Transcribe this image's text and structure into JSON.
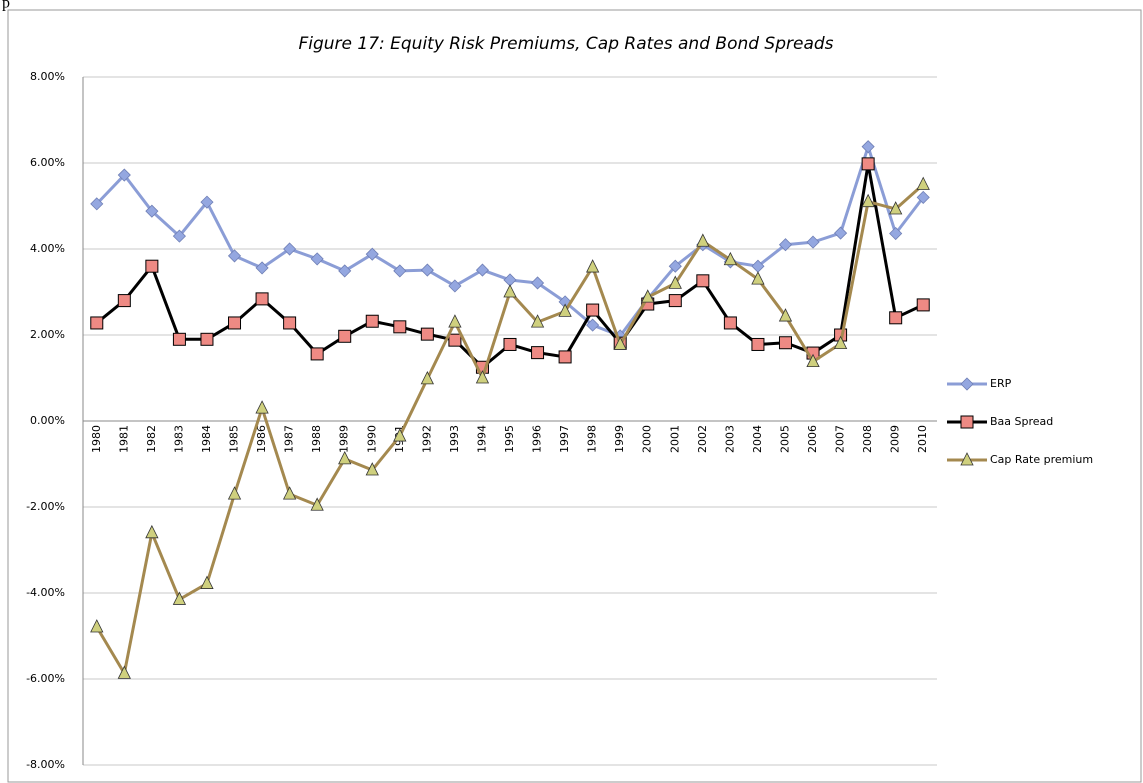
{
  "text_fragment": "p",
  "chart_data": {
    "type": "line",
    "title": "Figure 17: Equity Risk Premiums, Cap Rates and Bond Spreads",
    "categories": [
      "1980",
      "1981",
      "1982",
      "1983",
      "1984",
      "1985",
      "1986",
      "1987",
      "1988",
      "1989",
      "1990",
      "1991",
      "1992",
      "1993",
      "1994",
      "1995",
      "1996",
      "1997",
      "1998",
      "1999",
      "2000",
      "2001",
      "2002",
      "2003",
      "2004",
      "2005",
      "2006",
      "2007",
      "2008",
      "2009",
      "2010"
    ],
    "series": [
      {
        "name": "ERP",
        "color": "#8b9dd6",
        "marker": "diamond",
        "marker_color": "#94a7e0",
        "values": [
          5.05,
          5.72,
          4.88,
          4.3,
          5.09,
          3.84,
          3.56,
          4.0,
          3.77,
          3.49,
          3.88,
          3.49,
          3.51,
          3.14,
          3.51,
          3.28,
          3.21,
          2.77,
          2.23,
          1.98,
          2.84,
          3.6,
          4.1,
          3.7,
          3.6,
          4.1,
          4.16,
          4.37,
          6.38,
          4.36,
          5.2
        ]
      },
      {
        "name": "Baa Spread",
        "color": "#000000",
        "marker": "square",
        "marker_color": "#ee8a84",
        "values": [
          2.28,
          2.8,
          3.6,
          1.9,
          1.9,
          2.28,
          2.84,
          2.28,
          1.56,
          1.97,
          2.32,
          2.19,
          2.02,
          1.88,
          1.25,
          1.78,
          1.59,
          1.49,
          2.58,
          1.81,
          2.72,
          2.8,
          3.26,
          2.28,
          1.78,
          1.82,
          1.58,
          2.0,
          5.98,
          2.4,
          2.7
        ]
      },
      {
        "name": "Cap Rate premium",
        "color": "#a4894f",
        "marker": "triangle",
        "marker_color": "#cfd07e",
        "values": [
          -4.79,
          -5.87,
          -2.6,
          -4.15,
          -3.78,
          -1.7,
          0.3,
          -1.7,
          -1.96,
          -0.88,
          -1.14,
          -0.35,
          0.98,
          2.3,
          1.0,
          3.0,
          2.3,
          2.55,
          3.58,
          1.78,
          2.88,
          3.2,
          4.18,
          3.75,
          3.3,
          2.44,
          1.38,
          1.8,
          5.1,
          4.93,
          5.5
        ]
      }
    ],
    "ylim": [
      -8,
      8
    ],
    "yticks": [
      {
        "value": -8,
        "label": "-8.00%"
      },
      {
        "value": -6,
        "label": "-6.00%"
      },
      {
        "value": -4,
        "label": "-4.00%"
      },
      {
        "value": -2,
        "label": "-2.00%"
      },
      {
        "value": 0,
        "label": "0.00%"
      },
      {
        "value": 2,
        "label": "2.00%"
      },
      {
        "value": 4,
        "label": "4.00%"
      },
      {
        "value": 6,
        "label": "6.00%"
      },
      {
        "value": 8,
        "label": "8.00%"
      }
    ],
    "grid": true,
    "legend": "right"
  }
}
